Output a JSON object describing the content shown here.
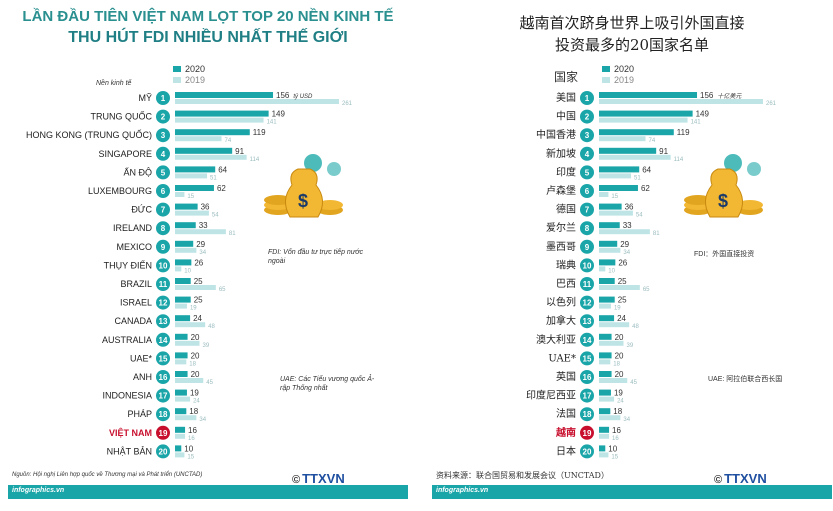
{
  "left": {
    "title_line1": "LẦN ĐẦU TIÊN VIỆT NAM LỌT TOP 20 NỀN KINH TẾ",
    "title_line2": "THU HÚT FDI NHIỀU NHẤT THẾ GIỚI",
    "column_header": "Nền kinh tế",
    "unit_note": "tỷ USD",
    "fdi_note": "FDI: Vốn đầu tư trực tiếp nước ngoài",
    "uae_note": "UAE: Các Tiểu vương quốc Ả-rập Thống nhất",
    "source": "Nguồn: Hội nghị Liên hợp quốc về Thương mại và Phát triển (UNCTAD)",
    "footer": "infographics.vn",
    "logo": "TTXVN",
    "copyright": "©"
  },
  "right": {
    "title_line1": "越南首次跻身世界上吸引外国直接",
    "title_line2": "投资最多的20国家名单",
    "column_header": "国家",
    "unit_note": "十亿美元",
    "fdi_note": "FDI：外国直接投资",
    "uae_note": "UAE: 阿拉伯联合西长国",
    "source": "资料来源：联合国贸易和发展会议（UNCTAD）",
    "footer": "infographics.vn",
    "logo": "TTXVN",
    "copyright": "©"
  },
  "colors": {
    "bar2020": "#1aa5a8",
    "bar2019": "#bfe4e6",
    "badge": "#1aa5a8",
    "highlight": "#c8102e",
    "label": "#222222"
  },
  "chart_data": {
    "type": "bar",
    "orientation": "horizontal",
    "unit": "tỷ USD",
    "series": [
      {
        "name": "2020",
        "values": [
          156,
          149,
          119,
          91,
          64,
          62,
          36,
          33,
          29,
          26,
          25,
          25,
          24,
          20,
          20,
          20,
          19,
          18,
          16,
          10
        ]
      },
      {
        "name": "2019",
        "values": [
          261,
          141,
          74,
          114,
          51,
          15,
          54,
          81,
          34,
          10,
          65,
          19,
          48,
          39,
          18,
          45,
          24,
          34,
          16,
          15
        ]
      }
    ],
    "ranks": [
      1,
      2,
      3,
      4,
      5,
      6,
      7,
      8,
      9,
      10,
      11,
      12,
      13,
      14,
      15,
      16,
      17,
      18,
      19,
      20
    ],
    "categories_vi": [
      "MỸ",
      "TRUNG QUỐC",
      "HONG KONG (TRUNG QUỐC)",
      "SINGAPORE",
      "ẤN ĐỘ",
      "LUXEMBOURG",
      "ĐỨC",
      "IRELAND",
      "MEXICO",
      "THỤY ĐIỂN",
      "BRAZIL",
      "ISRAEL",
      "CANADA",
      "AUSTRALIA",
      "UAE*",
      "ANH",
      "INDONESIA",
      "PHÁP",
      "VIỆT NAM",
      "NHẬT BẢN"
    ],
    "categories_cn": [
      "美国",
      "中国",
      "中国香港",
      "新加坡",
      "印度",
      "卢森堡",
      "德国",
      "爱尔兰",
      "墨西哥",
      "瑞典",
      "巴西",
      "以色列",
      "加拿大",
      "澳大利亚",
      "UAE*",
      "英国",
      "印度尼西亚",
      "法国",
      "越南",
      "日本"
    ],
    "highlight_index": 18,
    "xlim": [
      0,
      261
    ]
  }
}
